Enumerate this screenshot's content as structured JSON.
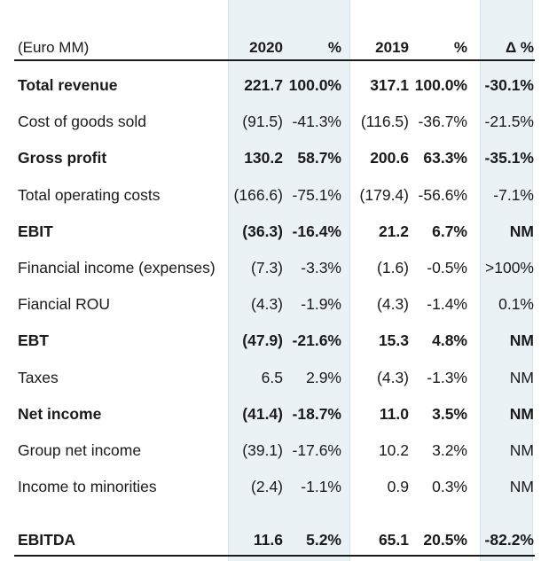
{
  "header": {
    "unit_label": "(Euro MM)",
    "col_2020": "2020",
    "col_2020_pct": "%",
    "col_2019": "2019",
    "col_2019_pct": "%",
    "col_delta": "Δ %"
  },
  "rows": [
    {
      "label": "Total revenue",
      "v2020": "221.7",
      "p2020": "100.0%",
      "v2019": "317.1",
      "p2019": "100.0%",
      "delta": "-30.1%",
      "bold": true
    },
    {
      "label": "Cost of goods sold",
      "v2020": "(91.5)",
      "p2020": "-41.3%",
      "v2019": "(116.5)",
      "p2019": "-36.7%",
      "delta": "-21.5%",
      "bold": false
    },
    {
      "label": "Gross profit",
      "v2020": "130.2",
      "p2020": "58.7%",
      "v2019": "200.6",
      "p2019": "63.3%",
      "delta": "-35.1%",
      "bold": true
    },
    {
      "label": "Total operating costs",
      "v2020": "(166.6)",
      "p2020": "-75.1%",
      "v2019": "(179.4)",
      "p2019": "-56.6%",
      "delta": "-7.1%",
      "bold": false
    },
    {
      "label": "EBIT",
      "v2020": "(36.3)",
      "p2020": "-16.4%",
      "v2019": "21.2",
      "p2019": "6.7%",
      "delta": "NM",
      "bold": true
    },
    {
      "label": "Financial income (expenses)",
      "v2020": "(7.3)",
      "p2020": "-3.3%",
      "v2019": "(1.6)",
      "p2019": "-0.5%",
      "delta": ">100%",
      "bold": false
    },
    {
      "label": "Fiancial ROU",
      "v2020": "(4.3)",
      "p2020": "-1.9%",
      "v2019": "(4.3)",
      "p2019": "-1.4%",
      "delta": "0.1%",
      "bold": false
    },
    {
      "label": "EBT",
      "v2020": "(47.9)",
      "p2020": "-21.6%",
      "v2019": "15.3",
      "p2019": "4.8%",
      "delta": "NM",
      "bold": true
    },
    {
      "label": "Taxes",
      "v2020": "6.5",
      "p2020": "2.9%",
      "v2019": "(4.3)",
      "p2019": "-1.3%",
      "delta": "NM",
      "bold": false
    },
    {
      "label": "Net income",
      "v2020": "(41.4)",
      "p2020": "-18.7%",
      "v2019": "11.0",
      "p2019": "3.5%",
      "delta": "NM",
      "bold": true
    },
    {
      "label": "Group net income",
      "v2020": "(39.1)",
      "p2020": "-17.6%",
      "v2019": "10.2",
      "p2019": "3.2%",
      "delta": "NM",
      "bold": false
    },
    {
      "label": "Income to minorities",
      "v2020": "(2.4)",
      "p2020": "-1.1%",
      "v2019": "0.9",
      "p2019": "0.3%",
      "delta": "NM",
      "bold": false
    }
  ],
  "footer_row": {
    "label": "EBITDA",
    "v2020": "11.6",
    "p2020": "5.2%",
    "v2019": "65.1",
    "p2019": "20.5%",
    "delta": "-82.2%",
    "bold": true
  }
}
